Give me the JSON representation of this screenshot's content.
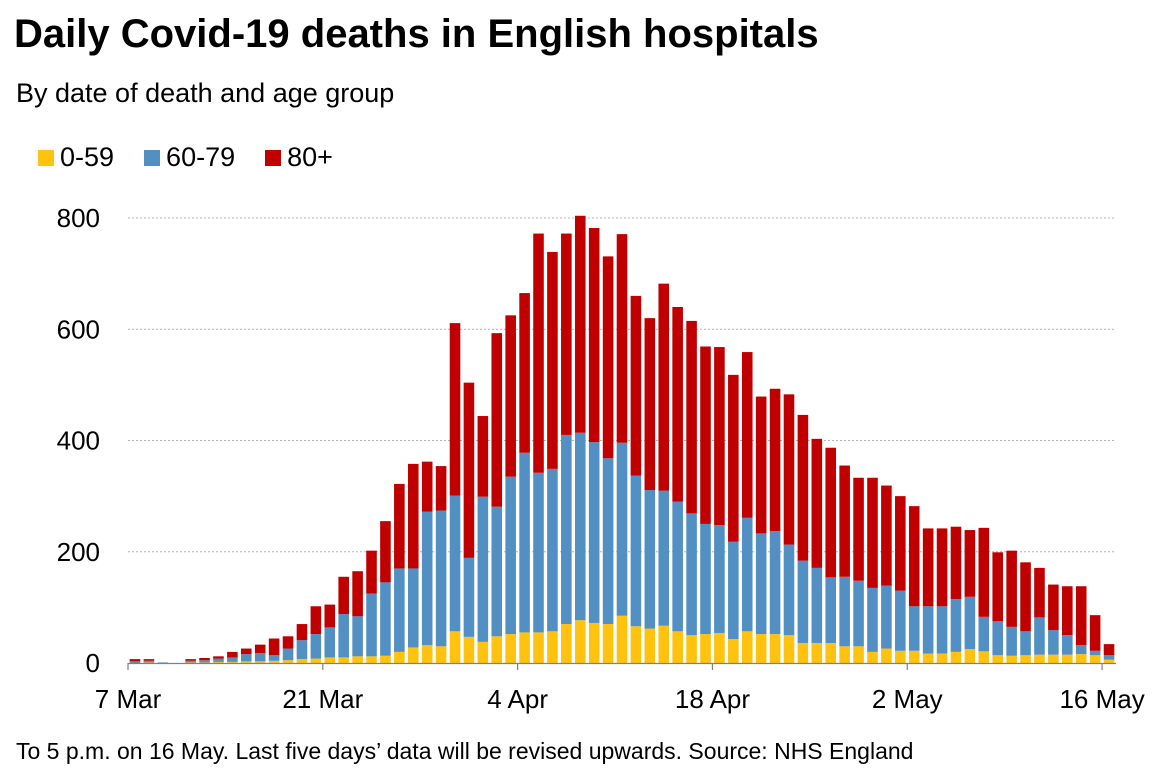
{
  "title": "Daily Covid-19 deaths in English hospitals",
  "subtitle": "By date of death and age group",
  "footer": "To 5 p.m. on 16 May. Last five days’ data will be revised upwards. Source: NHS England",
  "colors": {
    "age_0_59": "#ffc20e",
    "age_60_79": "#5290c4",
    "age_80_plus": "#c00000",
    "grid": "#b3b3b3",
    "axis": "#808080"
  },
  "chart_data": {
    "type": "bar",
    "stacked": true,
    "title": "Daily Covid-19 deaths in English hospitals",
    "subtitle": "By date of death and age group",
    "xlabel": "",
    "ylabel": "",
    "ylim": [
      0,
      900
    ],
    "yticks": [
      0,
      200,
      400,
      600,
      800
    ],
    "grid": true,
    "legend_position": "top-left",
    "x_tick_labels": [
      {
        "index": 0,
        "label": "7 Mar"
      },
      {
        "index": 14,
        "label": "21 Mar"
      },
      {
        "index": 28,
        "label": "4 Apr"
      },
      {
        "index": 42,
        "label": "18 Apr"
      },
      {
        "index": 56,
        "label": "2 May"
      },
      {
        "index": 70,
        "label": "16 May"
      }
    ],
    "categories": [
      "7 Mar",
      "8 Mar",
      "9 Mar",
      "10 Mar",
      "11 Mar",
      "12 Mar",
      "13 Mar",
      "14 Mar",
      "15 Mar",
      "16 Mar",
      "17 Mar",
      "18 Mar",
      "19 Mar",
      "20 Mar",
      "21 Mar",
      "22 Mar",
      "23 Mar",
      "24 Mar",
      "25 Mar",
      "26 Mar",
      "27 Mar",
      "28 Mar",
      "29 Mar",
      "30 Mar",
      "31 Mar",
      "1 Apr",
      "2 Apr",
      "3 Apr",
      "4 Apr",
      "5 Apr",
      "6 Apr",
      "7 Apr",
      "8 Apr",
      "9 Apr",
      "10 Apr",
      "11 Apr",
      "12 Apr",
      "13 Apr",
      "14 Apr",
      "15 Apr",
      "16 Apr",
      "17 Apr",
      "18 Apr",
      "19 Apr",
      "20 Apr",
      "21 Apr",
      "22 Apr",
      "23 Apr",
      "24 Apr",
      "25 Apr",
      "26 Apr",
      "27 Apr",
      "28 Apr",
      "29 Apr",
      "30 Apr",
      "1 May",
      "2 May",
      "3 May",
      "4 May",
      "5 May",
      "6 May",
      "7 May",
      "8 May",
      "9 May",
      "10 May",
      "11 May",
      "12 May",
      "13 May",
      "14 May",
      "15 May",
      "16 May"
    ],
    "series": [
      {
        "name": "0-59",
        "values": [
          0,
          1,
          0,
          0,
          1,
          1,
          2,
          2,
          3,
          3,
          4,
          5,
          7,
          8,
          10,
          10,
          12,
          12,
          13,
          20,
          28,
          32,
          30,
          57,
          47,
          38,
          48,
          52,
          55,
          55,
          57,
          70,
          77,
          72,
          70,
          85,
          66,
          62,
          67,
          57,
          50,
          52,
          54,
          43,
          57,
          52,
          52,
          50,
          36,
          36,
          36,
          30,
          30,
          20,
          26,
          22,
          22,
          17,
          17,
          20,
          25,
          21,
          14,
          13,
          14,
          15,
          15,
          15,
          16,
          14,
          6
        ]
      },
      {
        "name": "60-79",
        "values": [
          3,
          3,
          1,
          0,
          3,
          4,
          6,
          8,
          13,
          15,
          10,
          21,
          34,
          44,
          54,
          78,
          72,
          113,
          132,
          150,
          142,
          240,
          244,
          244,
          142,
          261,
          233,
          283,
          323,
          287,
          292,
          340,
          337,
          325,
          298,
          311,
          271,
          249,
          243,
          233,
          219,
          198,
          194,
          175,
          204,
          181,
          185,
          163,
          148,
          135,
          118,
          125,
          118,
          115,
          113,
          108,
          80,
          85,
          85,
          95,
          94,
          62,
          61,
          52,
          43,
          67,
          44,
          35,
          16,
          8,
          8
        ]
      },
      {
        "name": "80+",
        "values": [
          4,
          3,
          0,
          0,
          3,
          4,
          4,
          10,
          10,
          15,
          30,
          22,
          29,
          50,
          41,
          67,
          81,
          77,
          110,
          152,
          188,
          90,
          80,
          310,
          315,
          145,
          312,
          290,
          287,
          430,
          390,
          362,
          390,
          385,
          363,
          375,
          323,
          309,
          372,
          350,
          346,
          319,
          320,
          300,
          298,
          246,
          256,
          270,
          262,
          232,
          233,
          200,
          185,
          198,
          180,
          170,
          180,
          140,
          140,
          130,
          120,
          160,
          124,
          137,
          124,
          89,
          82,
          88,
          106,
          64,
          20
        ]
      }
    ]
  }
}
